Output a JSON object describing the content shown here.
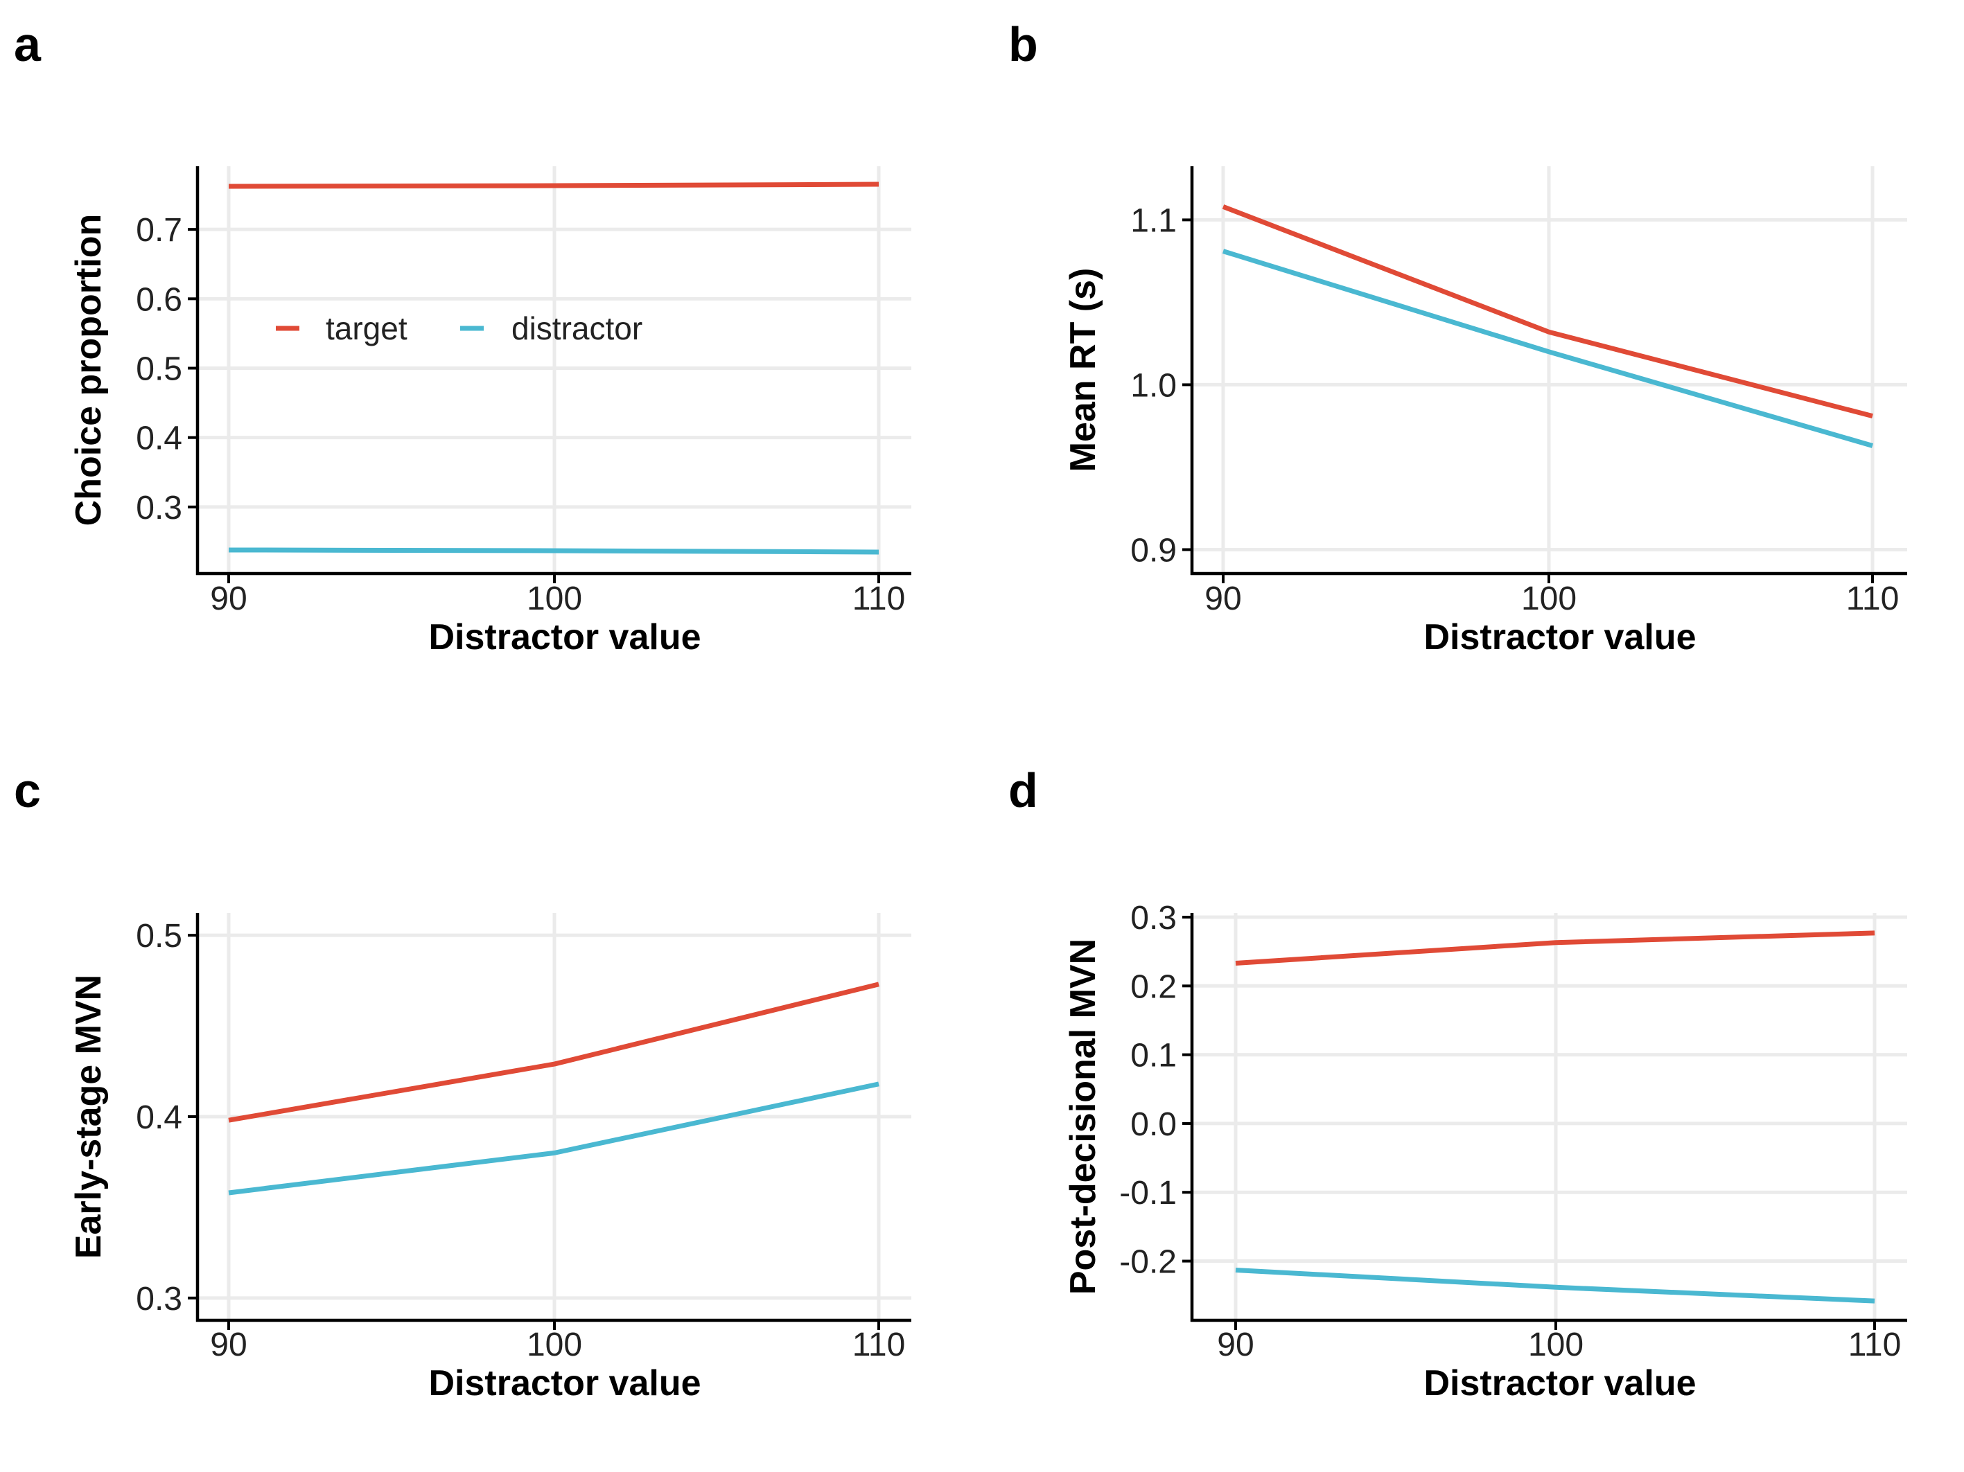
{
  "colors": {
    "target": "#e04a36",
    "distractor": "#4ab8d1"
  },
  "legend": [
    {
      "name": "target",
      "color": "#e04a36"
    },
    {
      "name": "distractor",
      "color": "#4ab8d1"
    }
  ],
  "chart_data": [
    {
      "panel": "a",
      "type": "line",
      "title": "",
      "xlabel": "Distractor value",
      "ylabel": "Choice proportion",
      "x": [
        90,
        100,
        110
      ],
      "xticks": [
        "90",
        "100",
        "110"
      ],
      "yticks": [
        "0.3",
        "0.4",
        "0.5",
        "0.6",
        "0.7"
      ],
      "ylim": [
        0.21,
        0.785
      ],
      "grid": true,
      "legend_placement": "inside-left",
      "series": [
        {
          "name": "target",
          "values": [
            0.762,
            0.763,
            0.765
          ]
        },
        {
          "name": "distractor",
          "values": [
            0.238,
            0.237,
            0.235
          ]
        }
      ]
    },
    {
      "panel": "b",
      "type": "line",
      "title": "",
      "xlabel": "Distractor value",
      "ylabel": "Mean RT (s)",
      "x": [
        90,
        100,
        110
      ],
      "xticks": [
        "90",
        "100",
        "110"
      ],
      "yticks": [
        "0.9",
        "1.0",
        "1.1"
      ],
      "ylim": [
        0.888,
        1.13
      ],
      "grid": true,
      "series": [
        {
          "name": "target",
          "values": [
            1.108,
            1.032,
            0.981
          ]
        },
        {
          "name": "distractor",
          "values": [
            1.081,
            1.02,
            0.963
          ]
        }
      ]
    },
    {
      "panel": "c",
      "type": "line",
      "title": "",
      "xlabel": "Distractor value",
      "ylabel": "Early-stage MVN",
      "x": [
        90,
        100,
        110
      ],
      "xticks": [
        "90",
        "100",
        "110"
      ],
      "yticks": [
        "0.3",
        "0.4",
        "0.5"
      ],
      "ylim": [
        0.29,
        0.51
      ],
      "grid": true,
      "series": [
        {
          "name": "target",
          "values": [
            0.398,
            0.429,
            0.473
          ]
        },
        {
          "name": "distractor",
          "values": [
            0.358,
            0.38,
            0.418
          ]
        }
      ]
    },
    {
      "panel": "d",
      "type": "line",
      "title": "",
      "xlabel": "Distractor value",
      "ylabel": "Post-decisional MVN",
      "x": [
        90,
        100,
        110
      ],
      "xticks": [
        "90",
        "100",
        "110"
      ],
      "yticks": [
        "-0.2",
        "-0.1",
        "0.0",
        "0.1",
        "0.2",
        "0.3"
      ],
      "ylim": [
        -0.28,
        0.3
      ],
      "grid": true,
      "series": [
        {
          "name": "target",
          "values": [
            0.233,
            0.263,
            0.277
          ]
        },
        {
          "name": "distractor",
          "values": [
            -0.213,
            -0.238,
            -0.258
          ]
        }
      ]
    }
  ]
}
